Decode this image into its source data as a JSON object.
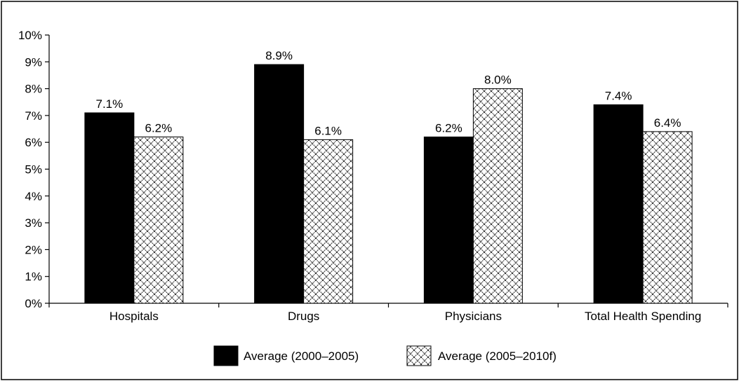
{
  "chart_data": {
    "type": "bar",
    "title": "",
    "xlabel": "",
    "ylabel": "",
    "categories": [
      "Hospitals",
      "Drugs",
      "Physicians",
      "Total Health Spending"
    ],
    "series": [
      {
        "name": "Average (2000–2005)",
        "values": [
          7.1,
          8.9,
          6.2,
          7.4
        ],
        "labels": [
          "7.1%",
          "8.9%",
          "6.2%",
          "7.4%"
        ],
        "fill": "solid",
        "color": "#000000"
      },
      {
        "name": "Average (2005–2010f)",
        "values": [
          6.2,
          6.1,
          8.0,
          6.4
        ],
        "labels": [
          "6.2%",
          "6.1%",
          "8.0%",
          "6.4%"
        ],
        "fill": "crosshatch",
        "color": "#000000"
      }
    ],
    "ylim": [
      0,
      10
    ],
    "yticks": [
      0,
      1,
      2,
      3,
      4,
      5,
      6,
      7,
      8,
      9,
      10
    ],
    "ytick_labels": [
      "0%",
      "1%",
      "2%",
      "3%",
      "4%",
      "5%",
      "6%",
      "7%",
      "8%",
      "9%",
      "10%"
    ],
    "grid": false,
    "legend_position": "bottom-center"
  }
}
